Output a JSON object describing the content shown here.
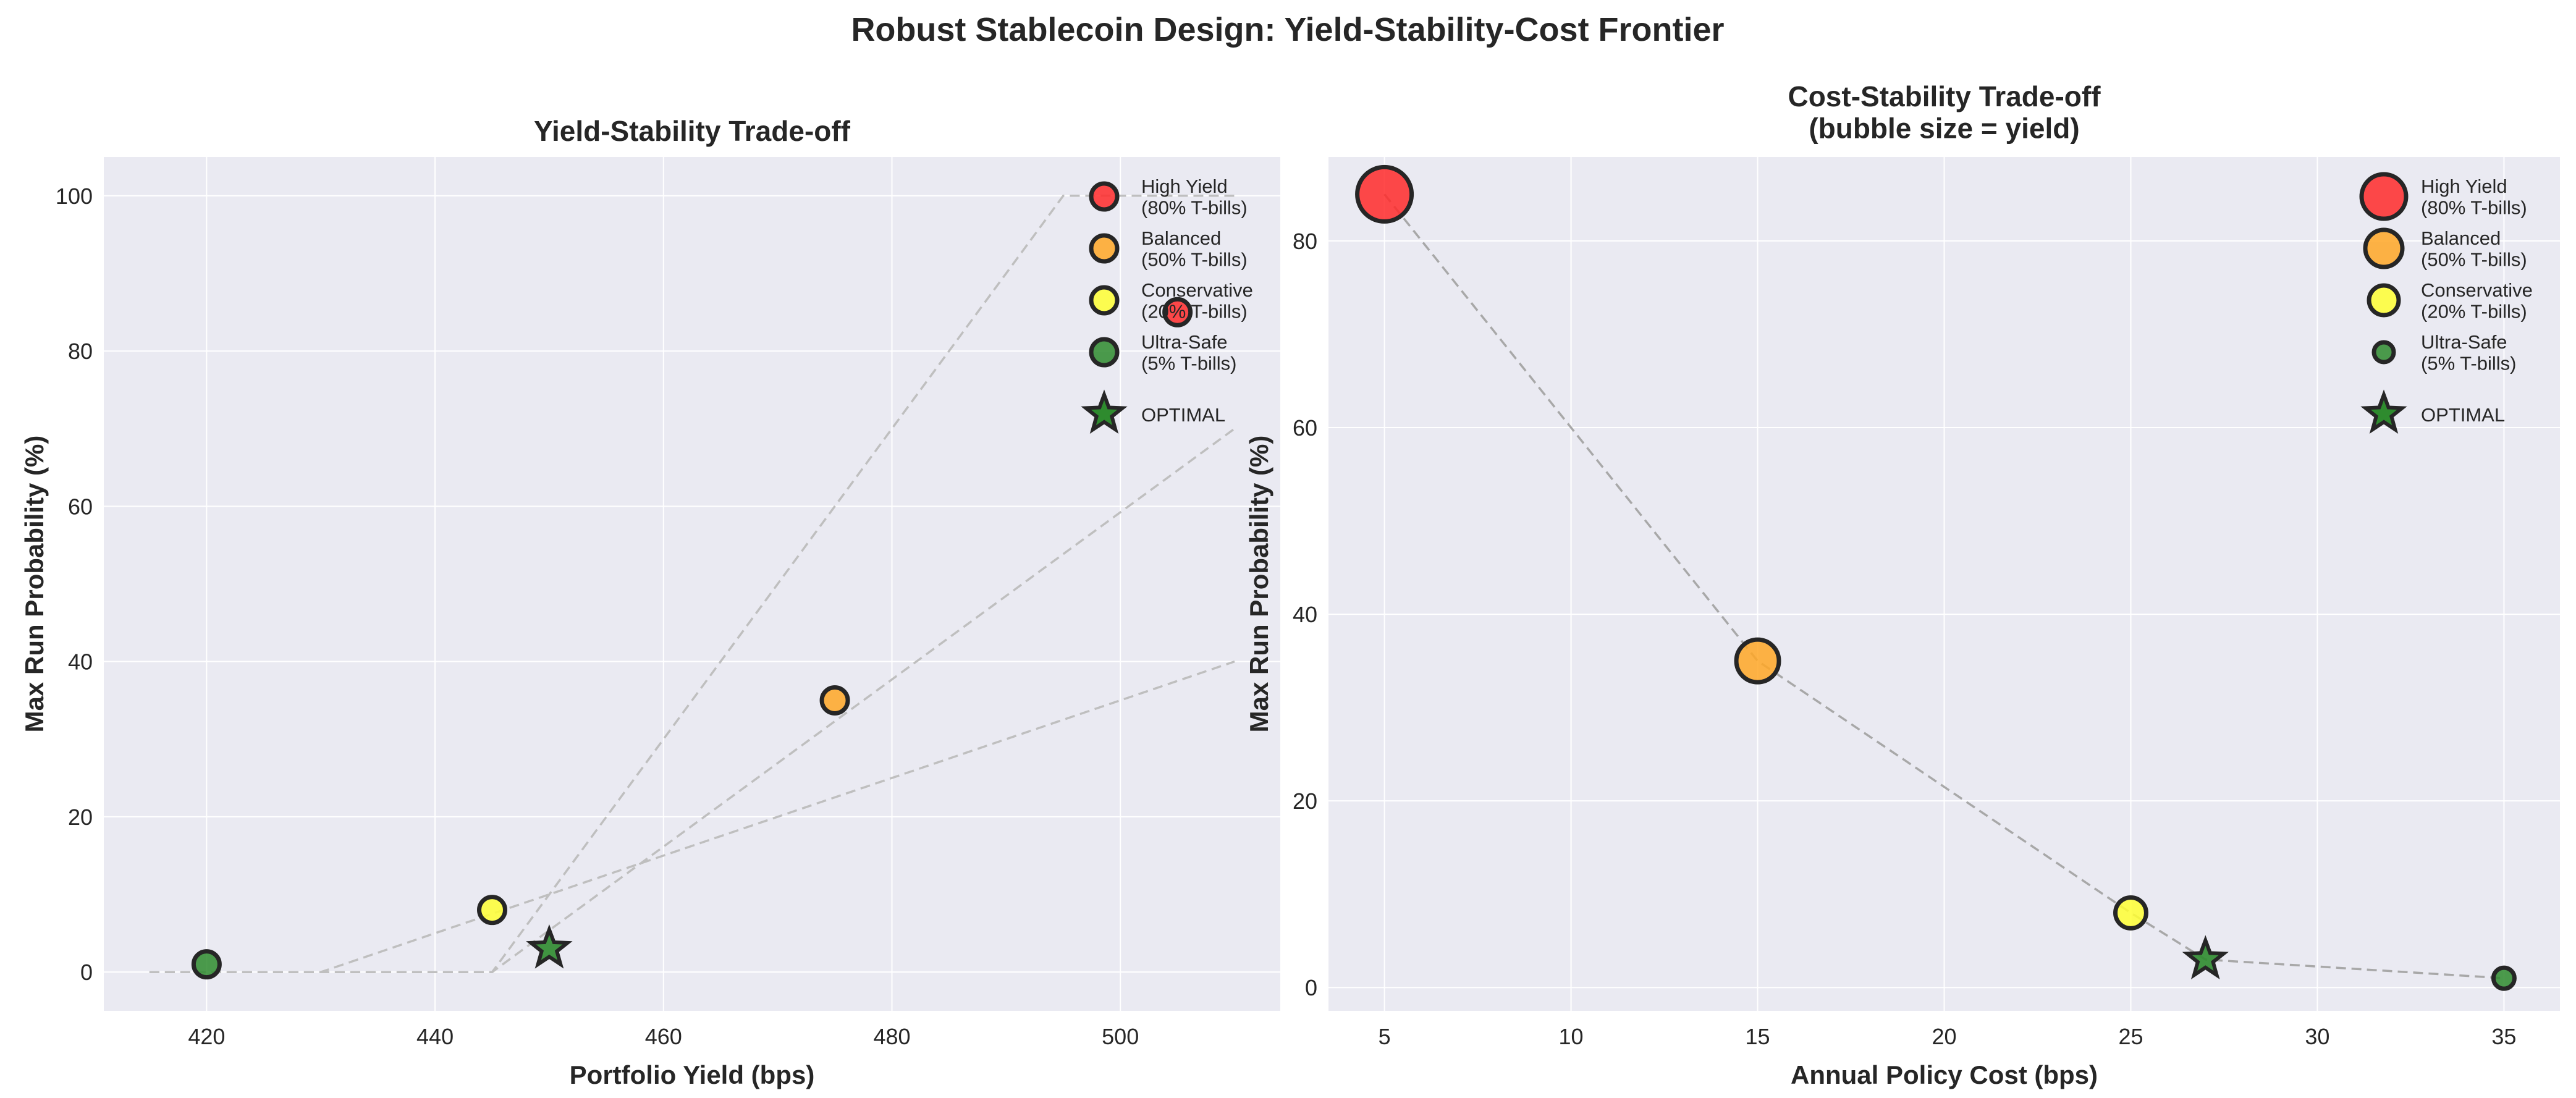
{
  "figure": {
    "suptitle": "Robust Stablecoin Design: Yield-Stability-Cost Frontier"
  },
  "colors": {
    "plot_bg": "#EAEAF2",
    "grid": "#FFFFFF",
    "high_yield": "#FF2A2A",
    "balanced": "#FFA726",
    "conservative": "#FFFF33",
    "ultra_safe": "#2E8B2E",
    "marker_edge": "#262626",
    "frontier": "#BFBFBF"
  },
  "chart_data": [
    {
      "type": "scatter",
      "title": "Yield-Stability Trade-off",
      "xlabel": "Portfolio Yield (bps)",
      "ylabel": "Max Run Probability (%)",
      "xlim": [
        411,
        514
      ],
      "ylim": [
        -5,
        105
      ],
      "x_ticks": [
        420,
        440,
        460,
        480,
        500
      ],
      "y_ticks": [
        0,
        20,
        40,
        60,
        80,
        100
      ],
      "grid": true,
      "legend_position": "top-right",
      "series": [
        {
          "name": "High Yield\n(80% T-bills)",
          "color": "#FF2A2A",
          "marker": "circle",
          "points": [
            {
              "x": 505,
              "y": 85
            }
          ]
        },
        {
          "name": "Balanced\n(50% T-bills)",
          "color": "#FFA726",
          "marker": "circle",
          "points": [
            {
              "x": 475,
              "y": 35
            }
          ]
        },
        {
          "name": "Conservative\n(20% T-bills)",
          "color": "#FFFF33",
          "marker": "circle",
          "points": [
            {
              "x": 445,
              "y": 8
            }
          ]
        },
        {
          "name": "Ultra-Safe\n(5% T-bills)",
          "color": "#2E8B2E",
          "marker": "circle",
          "points": [
            {
              "x": 420,
              "y": 1
            }
          ]
        },
        {
          "name": "OPTIMAL",
          "color": "#2E8B2E",
          "marker": "star",
          "points": [
            {
              "x": 450,
              "y": 3
            }
          ]
        }
      ],
      "reference_curves": [
        {
          "x": [
            415,
            440,
            445,
            495,
            510
          ],
          "y": [
            0,
            0,
            0,
            100,
            100
          ]
        },
        {
          "x": [
            415,
            430,
            450,
            510
          ],
          "y": [
            0,
            0,
            10,
            40
          ]
        },
        {
          "x": [
            415,
            445,
            510
          ],
          "y": [
            0,
            0,
            70
          ]
        }
      ]
    },
    {
      "type": "scatter",
      "title": "Cost-Stability Trade-off\n(bubble size = yield)",
      "xlabel": "Annual Policy Cost (bps)",
      "ylabel": "Max Run Probability (%)",
      "xlim": [
        3.5,
        36.5
      ],
      "ylim": [
        -2.5,
        89
      ],
      "x_ticks": [
        5,
        10,
        15,
        20,
        25,
        30,
        35
      ],
      "y_ticks": [
        0,
        20,
        40,
        60,
        80
      ],
      "grid": true,
      "legend_position": "top-right",
      "series": [
        {
          "name": "High Yield\n(80% T-bills)",
          "color": "#FF2A2A",
          "marker": "circle",
          "points": [
            {
              "x": 5,
              "y": 85,
              "yield": 505
            }
          ]
        },
        {
          "name": "Balanced\n(50% T-bills)",
          "color": "#FFA726",
          "marker": "circle",
          "points": [
            {
              "x": 15,
              "y": 35,
              "yield": 475
            }
          ]
        },
        {
          "name": "Conservative\n(20% T-bills)",
          "color": "#FFFF33",
          "marker": "circle",
          "points": [
            {
              "x": 25,
              "y": 8,
              "yield": 445
            }
          ]
        },
        {
          "name": "Ultra-Safe\n(5% T-bills)",
          "color": "#2E8B2E",
          "marker": "circle",
          "points": [
            {
              "x": 35,
              "y": 1,
              "yield": 420
            }
          ]
        },
        {
          "name": "OPTIMAL",
          "color": "#2E8B2E",
          "marker": "star",
          "points": [
            {
              "x": 27,
              "y": 3,
              "yield": 450
            }
          ]
        }
      ],
      "connector": {
        "x": [
          5,
          15,
          25,
          27,
          35
        ],
        "y": [
          85,
          35,
          8,
          3,
          1
        ]
      }
    }
  ]
}
